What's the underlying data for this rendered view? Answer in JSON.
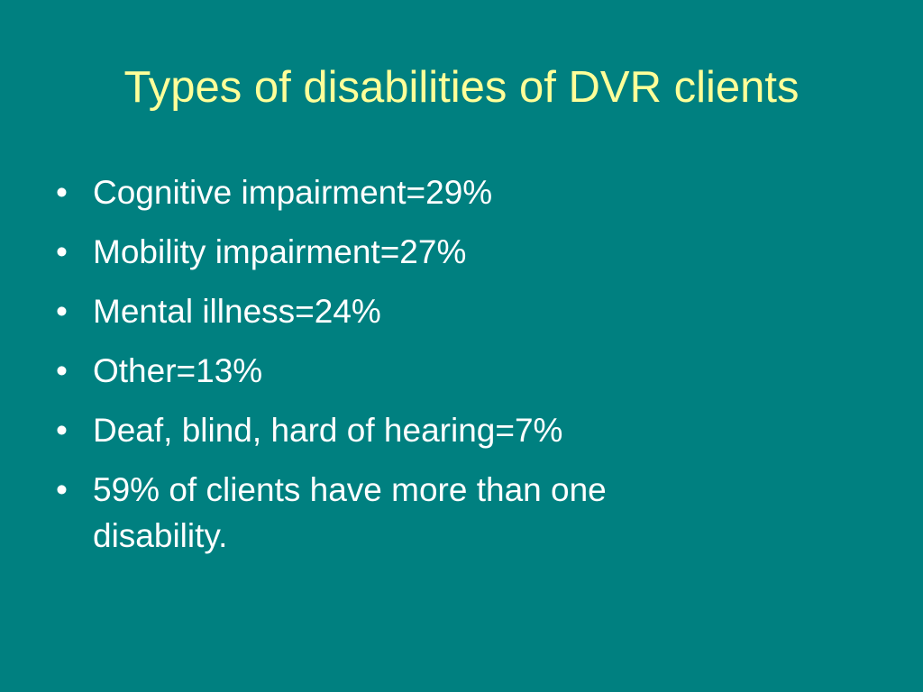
{
  "slide": {
    "title": "Types of disabilities of DVR clients",
    "bullet_marker": "•",
    "bullets": [
      "Cognitive impairment=29%",
      "Mobility impairment=27%",
      "Mental illness=24%",
      "Other=13%",
      "Deaf, blind, hard of hearing=7%",
      "59% of clients have more than one disability."
    ]
  },
  "colors": {
    "background": "#008080",
    "title": "#FFFF99",
    "body_text": "#FFFFFF"
  }
}
